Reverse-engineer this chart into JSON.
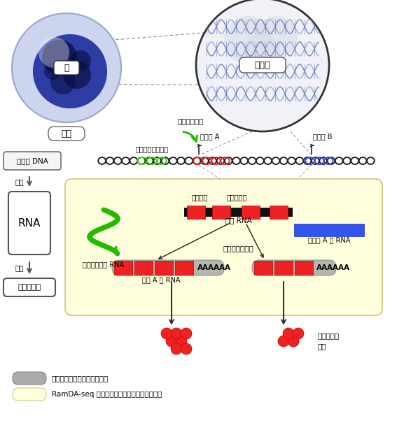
{
  "bg_color": "#ffffff",
  "yellow_box_color": "#ffffdd",
  "dna_black": "#222222",
  "dna_green": "#33dd00",
  "dna_red": "#ee2222",
  "dna_blue": "#3344ee",
  "exon_color": "#ee2222",
  "intron_color": "#111111",
  "blue_rna_color": "#3355ee",
  "green_rna_color": "#22bb00",
  "protein_color": "#ee2222",
  "green_arrow_color": "#22bb00",
  "label_genome_dna": "ゲノム DNA",
  "label_transcription": "転写",
  "label_rna": "RNA",
  "label_translation": "翻訳",
  "label_protein": "タンパク質",
  "label_nucleus": "核",
  "label_cell": "細胞",
  "label_genome": "ゲノム",
  "label_enhancer_region": "エンハンサー領域",
  "label_gene_a": "遺伝子 A",
  "label_gene_b": "遺伝子 B",
  "label_activate": "転写を活性化",
  "label_nascent_rna": "新生 RNA",
  "label_splicing": "スプライシング",
  "label_enhancer_rna": "エンハンサー RNA",
  "label_poly_a_rna": "ポリ A 型 RNA",
  "label_non_poly_a_rna": "非ポリ A 型 RNA",
  "label_exon": "エキソン",
  "label_intron": "イントロン",
  "label_different_function": "異なる機能",
  "label_disease": "疾患",
  "legend_gray": "既存の技術で計測できる範囲",
  "legend_yellow": "RamDA-seq で新たに計測が可能となった範囲",
  "poly_a_text": "AAAAAA"
}
